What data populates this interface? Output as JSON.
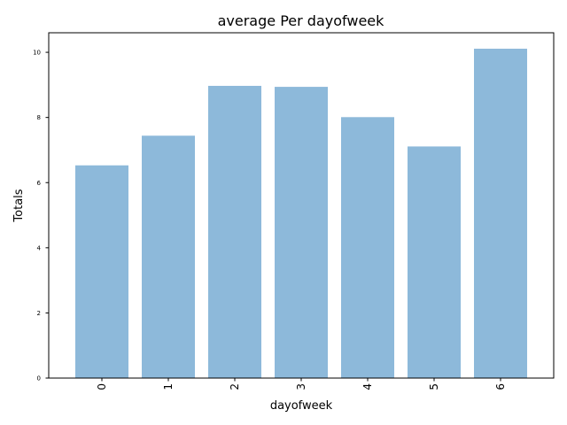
{
  "chart_data": {
    "type": "bar",
    "title": "average Per dayofweek",
    "xlabel": "dayofweek",
    "ylabel": "Totals",
    "categories": [
      "0",
      "1",
      "2",
      "3",
      "4",
      "5",
      "6"
    ],
    "values": [
      6.53,
      7.44,
      8.97,
      8.94,
      8.01,
      7.11,
      10.11
    ],
    "yticks": [
      0,
      2,
      4,
      6,
      8,
      10
    ],
    "ytick_labels": [
      "0",
      "2",
      "4",
      "6",
      "8",
      "10"
    ],
    "ylim": [
      0,
      10.6
    ],
    "grid": false,
    "bar_color": "#8db9da",
    "x_tick_rotation": "vertical"
  }
}
